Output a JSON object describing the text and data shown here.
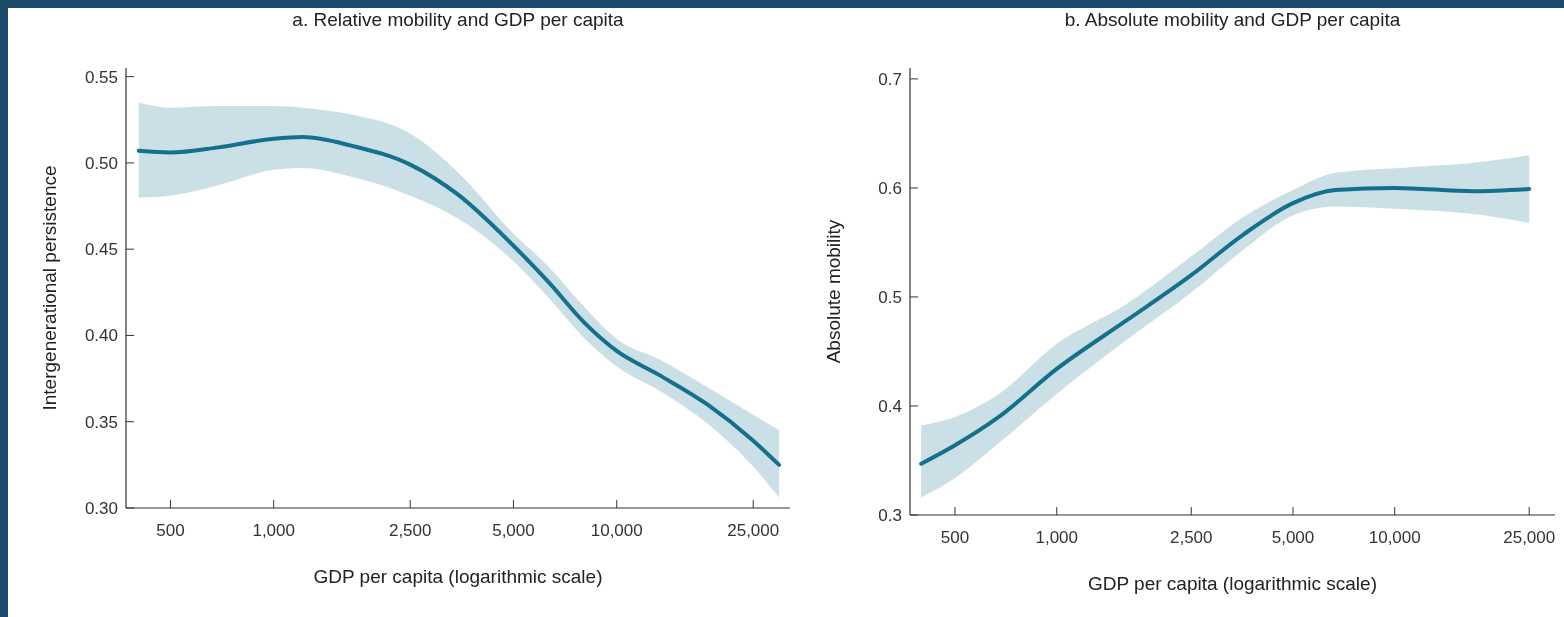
{
  "chart_data": [
    {
      "type": "line",
      "title": "a. Relative mobility and GDP per capita",
      "xlabel": "GDP per capita (logarithmic scale)",
      "ylabel": "Intergenerational persistence",
      "log": "x",
      "xlim": [
        371,
        32000
      ],
      "ylim": [
        0.3,
        0.555
      ],
      "xticks": [
        500,
        {
          "value": 1000,
          "label": "1,000"
        },
        {
          "value": 2500,
          "label": "2,500"
        },
        {
          "value": 5000,
          "label": "5,000"
        },
        {
          "value": 10000,
          "label": "10,000"
        },
        {
          "value": 25000,
          "label": "25,000"
        }
      ],
      "yticks": [
        {
          "value": 0.3,
          "label": "0.30"
        },
        0.35,
        {
          "value": 0.4,
          "label": "0.40"
        },
        0.45,
        {
          "value": 0.5,
          "label": "0.50"
        },
        0.55
      ],
      "series": [
        {
          "color": "#14708c",
          "x": [
            404,
            500,
            690,
            1000,
            1216,
            1684,
            2500,
            3425,
            5000,
            6320,
            8085,
            10000,
            13320,
            18370,
            25000,
            29740
          ],
          "values": [
            0.507,
            0.506,
            0.509,
            0.514,
            0.515,
            0.51,
            0.499,
            0.482,
            0.452,
            0.431,
            0.407,
            0.391,
            0.377,
            0.36,
            0.339,
            0.325
          ],
          "lower": [
            0.48,
            0.481,
            0.487,
            0.496,
            0.497,
            0.492,
            0.481,
            0.468,
            0.443,
            0.422,
            0.398,
            0.382,
            0.368,
            0.349,
            0.324,
            0.306
          ],
          "upper": [
            0.535,
            0.532,
            0.533,
            0.533,
            0.532,
            0.528,
            0.517,
            0.495,
            0.459,
            0.44,
            0.416,
            0.398,
            0.386,
            0.37,
            0.354,
            0.345
          ]
        }
      ]
    },
    {
      "type": "line",
      "title": "b. Absolute mobility and GDP per capita",
      "xlabel": "GDP per capita (logarithmic scale)",
      "ylabel": "Absolute mobility",
      "log": "x",
      "xlim": [
        368,
        29800
      ],
      "ylim": [
        0.3,
        0.71
      ],
      "xticks": [
        500,
        {
          "value": 1000,
          "label": "1,000"
        },
        {
          "value": 2500,
          "label": "2,500"
        },
        {
          "value": 5000,
          "label": "5,000"
        },
        {
          "value": 10000,
          "label": "10,000"
        },
        {
          "value": 25000,
          "label": "25,000"
        }
      ],
      "yticks": [
        0.3,
        0.4,
        0.5,
        0.6,
        0.7
      ],
      "series": [
        {
          "color": "#14708c",
          "x": [
            397,
            500,
            674,
            1000,
            1600,
            2500,
            3557,
            5000,
            6676,
            10000,
            17160,
            25000
          ],
          "values": [
            0.347,
            0.364,
            0.39,
            0.434,
            0.478,
            0.52,
            0.557,
            0.586,
            0.598,
            0.6,
            0.597,
            0.599
          ],
          "lower": [
            0.316,
            0.334,
            0.366,
            0.411,
            0.46,
            0.504,
            0.543,
            0.575,
            0.583,
            0.581,
            0.576,
            0.568
          ],
          "upper": [
            0.382,
            0.39,
            0.411,
            0.457,
            0.493,
            0.537,
            0.573,
            0.598,
            0.614,
            0.618,
            0.623,
            0.63
          ]
        }
      ]
    }
  ]
}
